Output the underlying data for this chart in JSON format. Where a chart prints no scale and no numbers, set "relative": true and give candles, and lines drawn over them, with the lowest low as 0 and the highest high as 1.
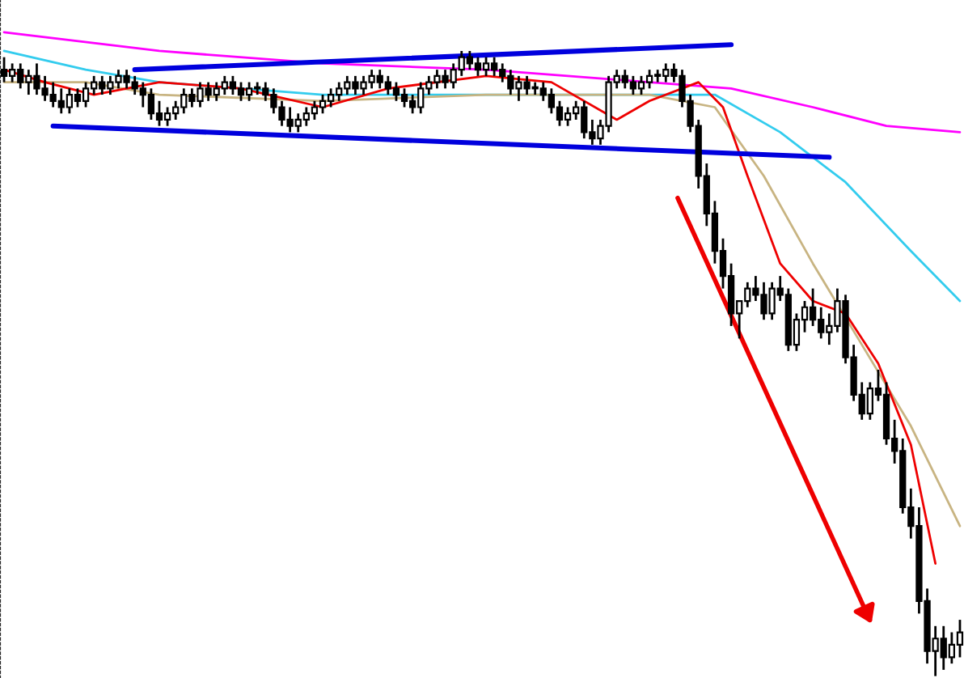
{
  "chart_data": {
    "type": "candlestick",
    "relative": true,
    "categories": [
      null,
      null,
      null,
      null,
      null,
      null,
      null,
      null,
      null,
      null,
      null,
      null,
      null,
      null,
      null,
      null,
      null,
      null,
      null,
      null,
      null,
      null,
      null,
      null,
      null,
      null,
      null,
      null,
      null,
      null,
      null,
      null,
      null,
      null,
      null,
      null,
      null,
      null,
      null,
      null,
      null,
      null,
      null,
      null,
      null,
      null,
      null,
      null,
      null,
      null,
      null,
      null,
      null,
      null,
      null,
      null,
      null,
      null,
      null,
      null,
      null,
      null,
      null,
      null,
      null,
      null,
      null,
      null,
      null,
      null,
      null,
      null,
      null,
      null,
      null,
      null,
      null,
      null,
      null,
      null,
      null,
      null,
      null,
      null,
      null,
      null,
      null,
      null,
      null,
      null,
      null,
      null,
      null,
      null,
      null,
      null,
      null,
      null,
      null,
      null,
      null,
      null,
      null,
      null,
      null,
      null,
      null,
      null,
      null,
      null,
      null,
      null,
      null,
      null,
      null,
      null,
      null,
      null
    ],
    "ohlc": [
      [
        0.97,
        0.99,
        0.95,
        0.96
      ],
      [
        0.96,
        0.98,
        0.95,
        0.97
      ],
      [
        0.97,
        0.98,
        0.94,
        0.95
      ],
      [
        0.95,
        0.97,
        0.93,
        0.96
      ],
      [
        0.96,
        0.98,
        0.93,
        0.94
      ],
      [
        0.94,
        0.96,
        0.92,
        0.93
      ],
      [
        0.93,
        0.95,
        0.91,
        0.92
      ],
      [
        0.92,
        0.94,
        0.9,
        0.91
      ],
      [
        0.91,
        0.94,
        0.9,
        0.93
      ],
      [
        0.93,
        0.94,
        0.91,
        0.92
      ],
      [
        0.92,
        0.95,
        0.91,
        0.94
      ],
      [
        0.94,
        0.96,
        0.93,
        0.95
      ],
      [
        0.95,
        0.96,
        0.93,
        0.94
      ],
      [
        0.94,
        0.96,
        0.93,
        0.95
      ],
      [
        0.95,
        0.97,
        0.94,
        0.96
      ],
      [
        0.96,
        0.97,
        0.94,
        0.95
      ],
      [
        0.95,
        0.96,
        0.93,
        0.94
      ],
      [
        0.94,
        0.95,
        0.91,
        0.93
      ],
      [
        0.93,
        0.94,
        0.89,
        0.9
      ],
      [
        0.9,
        0.92,
        0.88,
        0.89
      ],
      [
        0.89,
        0.91,
        0.88,
        0.9
      ],
      [
        0.9,
        0.92,
        0.89,
        0.91
      ],
      [
        0.91,
        0.94,
        0.9,
        0.93
      ],
      [
        0.93,
        0.94,
        0.91,
        0.92
      ],
      [
        0.92,
        0.95,
        0.91,
        0.94
      ],
      [
        0.94,
        0.95,
        0.92,
        0.93
      ],
      [
        0.93,
        0.95,
        0.92,
        0.94
      ],
      [
        0.94,
        0.96,
        0.93,
        0.95
      ],
      [
        0.95,
        0.96,
        0.93,
        0.94
      ],
      [
        0.94,
        0.95,
        0.92,
        0.93
      ],
      [
        0.93,
        0.95,
        0.92,
        0.94
      ],
      [
        0.94,
        0.95,
        0.93,
        0.94
      ],
      [
        0.94,
        0.95,
        0.92,
        0.93
      ],
      [
        0.93,
        0.94,
        0.9,
        0.91
      ],
      [
        0.91,
        0.92,
        0.88,
        0.89
      ],
      [
        0.89,
        0.91,
        0.87,
        0.88
      ],
      [
        0.88,
        0.9,
        0.87,
        0.89
      ],
      [
        0.89,
        0.91,
        0.88,
        0.9
      ],
      [
        0.9,
        0.92,
        0.89,
        0.91
      ],
      [
        0.91,
        0.93,
        0.9,
        0.92
      ],
      [
        0.92,
        0.94,
        0.91,
        0.93
      ],
      [
        0.93,
        0.95,
        0.92,
        0.94
      ],
      [
        0.94,
        0.96,
        0.93,
        0.95
      ],
      [
        0.95,
        0.96,
        0.93,
        0.94
      ],
      [
        0.94,
        0.96,
        0.93,
        0.95
      ],
      [
        0.95,
        0.97,
        0.94,
        0.96
      ],
      [
        0.96,
        0.97,
        0.94,
        0.95
      ],
      [
        0.95,
        0.96,
        0.93,
        0.94
      ],
      [
        0.94,
        0.95,
        0.92,
        0.93
      ],
      [
        0.93,
        0.94,
        0.91,
        0.92
      ],
      [
        0.92,
        0.93,
        0.9,
        0.91
      ],
      [
        0.91,
        0.95,
        0.9,
        0.94
      ],
      [
        0.94,
        0.96,
        0.93,
        0.95
      ],
      [
        0.95,
        0.97,
        0.94,
        0.96
      ],
      [
        0.96,
        0.97,
        0.94,
        0.95
      ],
      [
        0.95,
        0.98,
        0.94,
        0.97
      ],
      [
        0.97,
        1.0,
        0.96,
        0.99
      ],
      [
        0.99,
        1.0,
        0.97,
        0.98
      ],
      [
        0.98,
        0.99,
        0.96,
        0.97
      ],
      [
        0.97,
        0.99,
        0.96,
        0.98
      ],
      [
        0.98,
        0.99,
        0.96,
        0.97
      ],
      [
        0.97,
        0.98,
        0.95,
        0.96
      ],
      [
        0.96,
        0.97,
        0.93,
        0.94
      ],
      [
        0.94,
        0.96,
        0.92,
        0.95
      ],
      [
        0.95,
        0.96,
        0.93,
        0.94
      ],
      [
        0.94,
        0.95,
        0.93,
        0.94
      ],
      [
        0.94,
        0.95,
        0.92,
        0.93
      ],
      [
        0.93,
        0.94,
        0.9,
        0.91
      ],
      [
        0.91,
        0.92,
        0.88,
        0.89
      ],
      [
        0.89,
        0.91,
        0.88,
        0.9
      ],
      [
        0.9,
        0.92,
        0.89,
        0.91
      ],
      [
        0.91,
        0.92,
        0.86,
        0.87
      ],
      [
        0.87,
        0.89,
        0.85,
        0.86
      ],
      [
        0.86,
        0.89,
        0.85,
        0.88
      ],
      [
        0.88,
        0.96,
        0.87,
        0.95
      ],
      [
        0.95,
        0.97,
        0.94,
        0.96
      ],
      [
        0.96,
        0.97,
        0.94,
        0.95
      ],
      [
        0.95,
        0.96,
        0.93,
        0.94
      ],
      [
        0.94,
        0.96,
        0.93,
        0.95
      ],
      [
        0.95,
        0.97,
        0.94,
        0.96
      ],
      [
        0.96,
        0.97,
        0.95,
        0.96
      ],
      [
        0.96,
        0.98,
        0.95,
        0.97
      ],
      [
        0.97,
        0.98,
        0.95,
        0.96
      ],
      [
        0.96,
        0.97,
        0.91,
        0.92
      ],
      [
        0.92,
        0.93,
        0.87,
        0.88
      ],
      [
        0.88,
        0.89,
        0.78,
        0.8
      ],
      [
        0.8,
        0.82,
        0.72,
        0.74
      ],
      [
        0.74,
        0.76,
        0.66,
        0.68
      ],
      [
        0.68,
        0.7,
        0.62,
        0.64
      ],
      [
        0.64,
        0.66,
        0.56,
        0.58
      ],
      [
        0.58,
        0.6,
        0.54,
        0.6
      ],
      [
        0.6,
        0.63,
        0.59,
        0.62
      ],
      [
        0.62,
        0.64,
        0.6,
        0.61
      ],
      [
        0.61,
        0.63,
        0.57,
        0.58
      ],
      [
        0.58,
        0.63,
        0.57,
        0.62
      ],
      [
        0.62,
        0.64,
        0.6,
        0.61
      ],
      [
        0.61,
        0.62,
        0.52,
        0.53
      ],
      [
        0.53,
        0.58,
        0.52,
        0.57
      ],
      [
        0.57,
        0.6,
        0.55,
        0.59
      ],
      [
        0.59,
        0.62,
        0.56,
        0.57
      ],
      [
        0.57,
        0.59,
        0.54,
        0.55
      ],
      [
        0.55,
        0.58,
        0.53,
        0.56
      ],
      [
        0.56,
        0.62,
        0.55,
        0.6
      ],
      [
        0.6,
        0.61,
        0.5,
        0.51
      ],
      [
        0.51,
        0.53,
        0.44,
        0.45
      ],
      [
        0.45,
        0.47,
        0.41,
        0.42
      ],
      [
        0.42,
        0.47,
        0.41,
        0.46
      ],
      [
        0.46,
        0.49,
        0.44,
        0.45
      ],
      [
        0.45,
        0.47,
        0.37,
        0.38
      ],
      [
        0.38,
        0.41,
        0.34,
        0.36
      ],
      [
        0.36,
        0.38,
        0.26,
        0.27
      ],
      [
        0.27,
        0.3,
        0.22,
        0.24
      ],
      [
        0.24,
        0.27,
        0.1,
        0.12
      ],
      [
        0.12,
        0.14,
        0.02,
        0.04
      ],
      [
        0.04,
        0.08,
        0.0,
        0.06
      ],
      [
        0.06,
        0.08,
        0.01,
        0.03
      ],
      [
        0.03,
        0.07,
        0.02,
        0.05
      ],
      [
        0.05,
        0.09,
        0.03,
        0.07
      ]
    ],
    "series": [
      {
        "type": "line",
        "color": "#ff00ff",
        "values": [
          1.03,
          null,
          null,
          null,
          null,
          null,
          null,
          null,
          null,
          null,
          null,
          null,
          null,
          null,
          null,
          null,
          null,
          null,
          null,
          1.0,
          null,
          null,
          null,
          null,
          null,
          null,
          null,
          null,
          null,
          null,
          null,
          null,
          null,
          null,
          null,
          null,
          null,
          null,
          null,
          0.98,
          null,
          null,
          null,
          null,
          null,
          null,
          null,
          null,
          null,
          null,
          null,
          null,
          null,
          null,
          null,
          null,
          null,
          null,
          null,
          0.97,
          null,
          null,
          null,
          null,
          null,
          null,
          null,
          null,
          null,
          null,
          null,
          null,
          null,
          null,
          null,
          null,
          null,
          null,
          null,
          0.95,
          null,
          null,
          null,
          null,
          null,
          null,
          null,
          null,
          null,
          0.94,
          null,
          null,
          null,
          null,
          null,
          null,
          null,
          null,
          null,
          0.91,
          null,
          null,
          null,
          null,
          null,
          null,
          null,
          null,
          0.88,
          null,
          null,
          null,
          null,
          null,
          null,
          null,
          null,
          0.87
        ]
      },
      {
        "type": "line",
        "color": "#33ccee",
        "values": [
          1.0,
          null,
          null,
          null,
          null,
          null,
          null,
          null,
          null,
          null,
          0.97,
          null,
          null,
          null,
          null,
          null,
          null,
          null,
          null,
          0.95,
          null,
          null,
          null,
          null,
          null,
          null,
          null,
          null,
          null,
          null,
          null,
          null,
          null,
          null,
          null,
          null,
          null,
          null,
          null,
          0.93,
          null,
          null,
          null,
          null,
          null,
          null,
          null,
          null,
          null,
          null,
          null,
          null,
          null,
          null,
          null,
          null,
          null,
          null,
          null,
          null,
          null,
          null,
          null,
          null,
          null,
          null,
          null,
          null,
          null,
          null,
          null,
          null,
          null,
          null,
          null,
          null,
          null,
          null,
          null,
          0.93,
          null,
          null,
          null,
          null,
          null,
          null,
          null,
          0.93,
          null,
          null,
          null,
          null,
          null,
          null,
          null,
          0.87,
          null,
          null,
          null,
          null,
          null,
          null,
          null,
          0.79,
          null,
          null,
          null,
          null,
          null,
          null,
          null,
          0.68,
          null,
          null,
          null,
          null,
          null,
          0.6
        ]
      },
      {
        "type": "line",
        "color": "#c8b482",
        "values": [
          0.95,
          null,
          null,
          null,
          null,
          null,
          null,
          null,
          null,
          null,
          0.95,
          null,
          null,
          null,
          null,
          null,
          null,
          null,
          null,
          0.93,
          null,
          null,
          null,
          null,
          null,
          null,
          null,
          null,
          null,
          null,
          null,
          null,
          null,
          null,
          null,
          null,
          null,
          null,
          null,
          0.92,
          null,
          null,
          null,
          null,
          null,
          null,
          null,
          null,
          null,
          null,
          null,
          null,
          null,
          null,
          null,
          null,
          null,
          null,
          null,
          0.93,
          null,
          null,
          null,
          null,
          null,
          null,
          null,
          null,
          null,
          null,
          null,
          null,
          null,
          null,
          null,
          null,
          null,
          null,
          null,
          0.93,
          null,
          null,
          null,
          null,
          null,
          null,
          null,
          0.91,
          null,
          null,
          null,
          null,
          null,
          0.8,
          null,
          null,
          null,
          null,
          null,
          0.66,
          null,
          null,
          null,
          null,
          null,
          0.53,
          null,
          null,
          null,
          null,
          null,
          0.4,
          null,
          null,
          null,
          null,
          null,
          0.24
        ]
      },
      {
        "type": "line",
        "color": "#ee0000",
        "values": [
          0.97,
          null,
          null,
          null,
          null,
          0.95,
          null,
          null,
          null,
          null,
          null,
          0.93,
          null,
          null,
          null,
          null,
          null,
          null,
          null,
          0.95,
          null,
          null,
          null,
          null,
          null,
          null,
          null,
          null,
          null,
          0.94,
          null,
          null,
          null,
          null,
          null,
          null,
          null,
          null,
          null,
          0.91,
          null,
          null,
          null,
          null,
          null,
          null,
          null,
          0.94,
          null,
          null,
          null,
          null,
          null,
          null,
          null,
          null,
          null,
          null,
          null,
          0.96,
          null,
          null,
          null,
          null,
          null,
          null,
          null,
          0.95,
          null,
          null,
          null,
          null,
          null,
          null,
          null,
          0.89,
          null,
          null,
          null,
          0.92,
          null,
          null,
          null,
          null,
          null,
          0.95,
          null,
          null,
          0.91,
          null,
          null,
          0.8,
          null,
          null,
          null,
          0.66,
          null,
          null,
          null,
          0.6,
          null,
          null,
          null,
          0.58,
          null,
          null,
          null,
          0.5,
          null,
          null,
          null,
          0.37,
          null,
          null,
          0.18,
          null,
          null,
          null
        ]
      },
      {
        "type": "line",
        "color": "#0000dd",
        "values": [
          null,
          null,
          null,
          null,
          null,
          null,
          null,
          null,
          null,
          null,
          null,
          null,
          null,
          null,
          null,
          null,
          0.97,
          null,
          null,
          null,
          null,
          null,
          null,
          null,
          null,
          null,
          null,
          null,
          null,
          null,
          null,
          null,
          null,
          null,
          null,
          null,
          null,
          null,
          null,
          null,
          null,
          null,
          null,
          null,
          null,
          null,
          null,
          null,
          null,
          null,
          null,
          null,
          null,
          null,
          null,
          null,
          null,
          null,
          null,
          null,
          null,
          null,
          null,
          null,
          null,
          null,
          null,
          null,
          null,
          null,
          null,
          null,
          null,
          null,
          null,
          null,
          null,
          null,
          null,
          null,
          null,
          null,
          null,
          null,
          null,
          null,
          null,
          null,
          null,
          1.01,
          null,
          null,
          null,
          null,
          null,
          null,
          null,
          null,
          null,
          null,
          null,
          null,
          null,
          null,
          null,
          null,
          null,
          null,
          null,
          null,
          null,
          null,
          null,
          null,
          null,
          null,
          null,
          null
        ]
      },
      {
        "type": "line",
        "color": "#0000dd",
        "values": [
          null,
          null,
          null,
          null,
          null,
          null,
          0.88,
          null,
          null,
          null,
          null,
          null,
          null,
          null,
          null,
          null,
          null,
          null,
          null,
          null,
          null,
          null,
          null,
          null,
          null,
          null,
          null,
          null,
          null,
          null,
          null,
          null,
          null,
          null,
          null,
          null,
          null,
          null,
          null,
          null,
          null,
          null,
          null,
          null,
          null,
          null,
          null,
          null,
          null,
          null,
          null,
          null,
          null,
          null,
          null,
          null,
          null,
          null,
          null,
          null,
          null,
          null,
          null,
          null,
          null,
          null,
          null,
          null,
          null,
          null,
          null,
          null,
          null,
          null,
          null,
          null,
          null,
          null,
          null,
          null,
          null,
          null,
          null,
          null,
          null,
          null,
          null,
          null,
          null,
          null,
          null,
          null,
          null,
          null,
          null,
          null,
          null,
          null,
          null,
          null,
          null,
          0.83,
          null,
          null,
          null,
          null,
          null,
          null,
          null,
          null,
          null,
          null,
          null,
          null,
          null,
          null,
          null,
          null
        ]
      }
    ]
  }
}
